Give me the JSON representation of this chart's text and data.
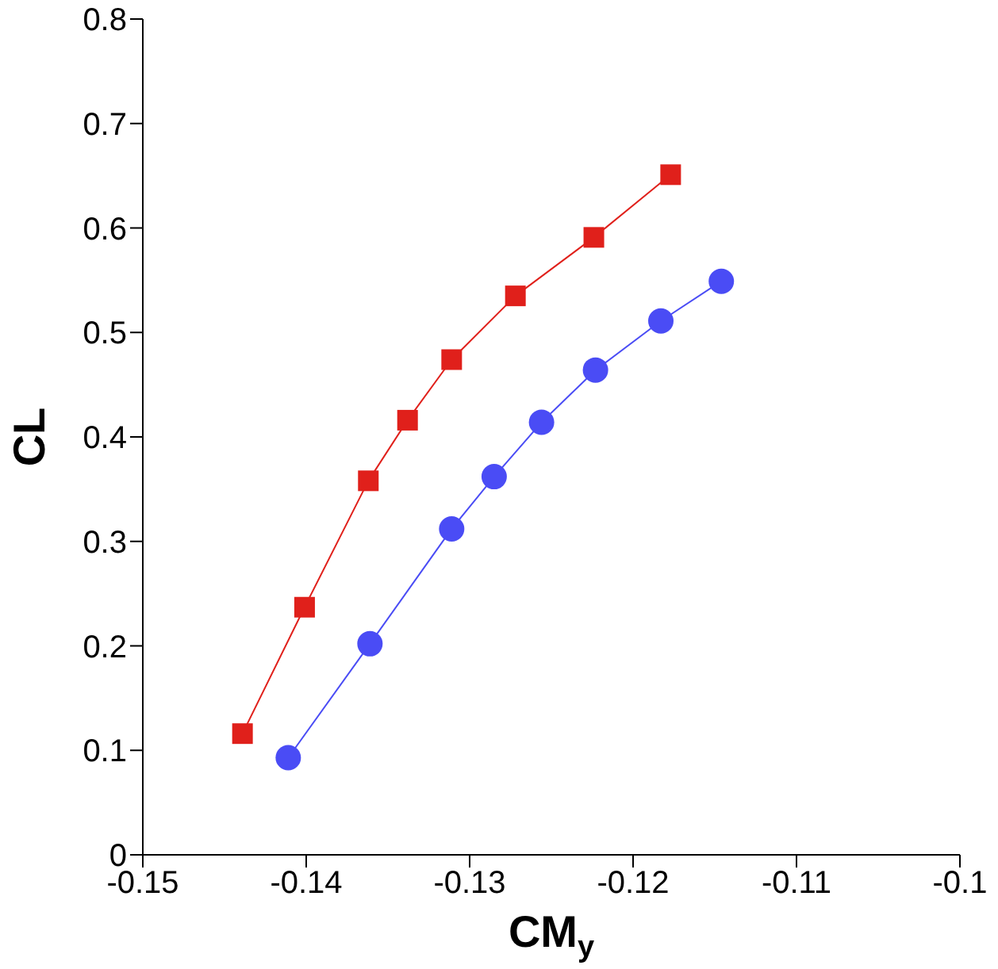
{
  "chart_data": {
    "type": "line",
    "xlabel": "CM$_{y}$",
    "ylabel": "CL",
    "xlim": [
      -0.15,
      -0.1
    ],
    "xticks": [
      -0.15,
      -0.14,
      -0.13,
      -0.12,
      -0.11,
      -0.1
    ],
    "ylim": [
      0,
      0.8
    ],
    "yticks": [
      0,
      0.1,
      0.2,
      0.3,
      0.4,
      0.5,
      0.6,
      0.7,
      0.8
    ],
    "grid": false,
    "series": [
      {
        "color": "#e0201b",
        "marker": "square",
        "x": [
          -0.1439,
          -0.1401,
          -0.1362,
          -0.1338,
          -0.1311,
          -0.1272,
          -0.1224,
          -0.1177
        ],
        "values": [
          0.116,
          0.237,
          0.358,
          0.416,
          0.474,
          0.535,
          0.591,
          0.651
        ]
      },
      {
        "color": "#4a4cf5",
        "marker": "circle",
        "x": [
          -0.1411,
          -0.1361,
          -0.1311,
          -0.1285,
          -0.1256,
          -0.1223,
          -0.1183,
          -0.1146
        ],
        "values": [
          0.093,
          0.202,
          0.312,
          0.362,
          0.414,
          0.464,
          0.511,
          0.549
        ]
      }
    ]
  }
}
